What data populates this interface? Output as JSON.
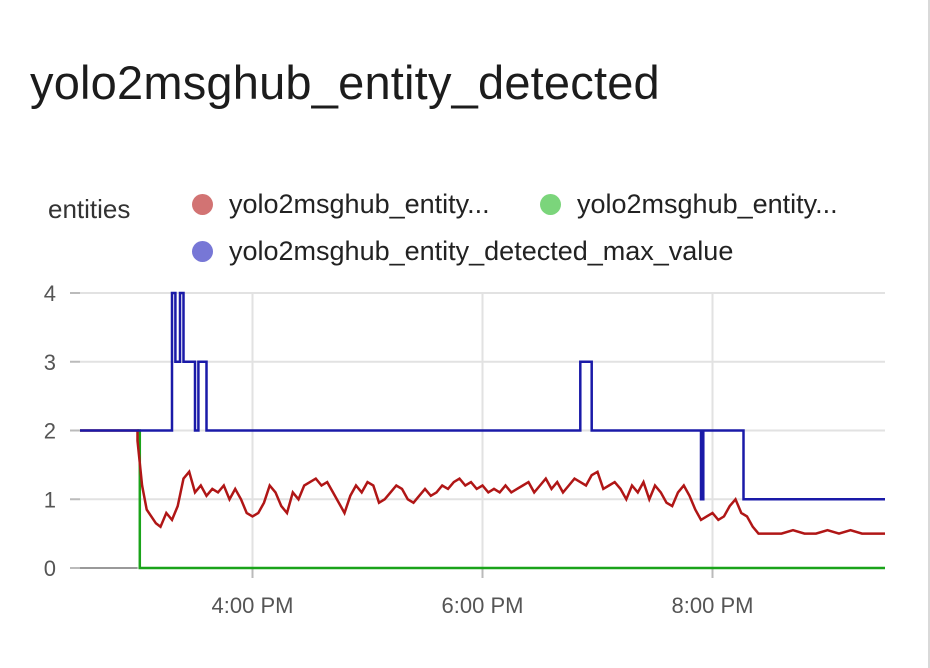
{
  "chart_data": {
    "type": "line",
    "title": "yolo2msghub_entity_detected",
    "ylabel": "entities",
    "ylim": [
      0,
      4
    ],
    "yticks": [
      0,
      1,
      2,
      3,
      4
    ],
    "xlim": [
      14.5,
      21.5
    ],
    "xticks": [
      {
        "value": 16,
        "label": "4:00 PM"
      },
      {
        "value": 18,
        "label": "6:00 PM"
      },
      {
        "value": 20,
        "label": "8:00 PM"
      }
    ],
    "grid": true,
    "legend_position": "top",
    "series": [
      {
        "name": "yolo2msghub_entity...",
        "color": "#b01616",
        "legend_color": "#d27373",
        "step": false,
        "x": [
          14.5,
          15.0,
          15.0,
          15.04,
          15.08,
          15.12,
          15.16,
          15.2,
          15.25,
          15.3,
          15.35,
          15.4,
          15.45,
          15.5,
          15.55,
          15.6,
          15.65,
          15.7,
          15.75,
          15.8,
          15.85,
          15.9,
          15.95,
          16.0,
          16.05,
          16.1,
          16.15,
          16.2,
          16.25,
          16.3,
          16.35,
          16.4,
          16.45,
          16.5,
          16.55,
          16.6,
          16.65,
          16.7,
          16.75,
          16.8,
          16.85,
          16.9,
          16.95,
          17.0,
          17.05,
          17.1,
          17.15,
          17.2,
          17.25,
          17.3,
          17.35,
          17.4,
          17.45,
          17.5,
          17.55,
          17.6,
          17.65,
          17.7,
          17.75,
          17.8,
          17.85,
          17.9,
          17.95,
          18.0,
          18.05,
          18.1,
          18.15,
          18.2,
          18.25,
          18.3,
          18.35,
          18.4,
          18.45,
          18.5,
          18.55,
          18.6,
          18.65,
          18.7,
          18.75,
          18.8,
          18.85,
          18.9,
          18.95,
          19.0,
          19.05,
          19.1,
          19.15,
          19.2,
          19.25,
          19.3,
          19.35,
          19.4,
          19.45,
          19.5,
          19.55,
          19.6,
          19.65,
          19.7,
          19.75,
          19.8,
          19.85,
          19.9,
          19.95,
          20.0,
          20.05,
          20.1,
          20.15,
          20.2,
          20.25,
          20.3,
          20.35,
          20.4,
          20.45,
          20.5,
          20.6,
          20.7,
          20.8,
          20.9,
          21.0,
          21.1,
          21.2,
          21.3,
          21.4,
          21.5
        ],
        "y": [
          2,
          2,
          1.85,
          1.2,
          0.85,
          0.75,
          0.65,
          0.6,
          0.8,
          0.7,
          0.9,
          1.3,
          1.4,
          1.1,
          1.2,
          1.05,
          1.15,
          1.1,
          1.2,
          1.0,
          1.15,
          1.0,
          0.8,
          0.75,
          0.8,
          0.95,
          1.2,
          1.1,
          0.9,
          0.8,
          1.1,
          1.0,
          1.2,
          1.25,
          1.3,
          1.2,
          1.25,
          1.1,
          0.95,
          0.8,
          1.05,
          1.2,
          1.1,
          1.25,
          1.2,
          0.95,
          1.0,
          1.1,
          1.2,
          1.15,
          1.0,
          0.95,
          1.05,
          1.15,
          1.05,
          1.1,
          1.2,
          1.15,
          1.25,
          1.3,
          1.2,
          1.25,
          1.15,
          1.2,
          1.1,
          1.15,
          1.1,
          1.2,
          1.1,
          1.15,
          1.2,
          1.25,
          1.1,
          1.2,
          1.3,
          1.15,
          1.25,
          1.1,
          1.2,
          1.3,
          1.25,
          1.2,
          1.35,
          1.4,
          1.15,
          1.2,
          1.25,
          1.15,
          1.0,
          1.2,
          1.1,
          1.25,
          1.0,
          1.2,
          1.1,
          0.95,
          0.9,
          1.1,
          1.2,
          1.05,
          0.85,
          0.7,
          0.75,
          0.8,
          0.7,
          0.75,
          0.9,
          1.0,
          0.8,
          0.75,
          0.6,
          0.5,
          0.5,
          0.5,
          0.5,
          0.55,
          0.5,
          0.5,
          0.55,
          0.5,
          0.55,
          0.5,
          0.5,
          0.5
        ]
      },
      {
        "name": "yolo2msghub_entity...",
        "color": "#1aa31a",
        "legend_color": "#7bd57b",
        "step": true,
        "x": [
          15.0,
          15.02,
          21.5
        ],
        "y": [
          2,
          0,
          0
        ]
      },
      {
        "name": "yolo2msghub_entity_detected_max_value",
        "color": "#1a1aa8",
        "legend_color": "#7777d6",
        "step": true,
        "x": [
          14.5,
          15.0,
          15.3,
          15.33,
          15.37,
          15.4,
          15.5,
          15.53,
          15.6,
          15.67,
          18.85,
          18.95,
          19.9,
          19.92,
          20.27,
          21.5
        ],
        "y": [
          2,
          2,
          4,
          3,
          4,
          3,
          2,
          3,
          2,
          2,
          3,
          2,
          1,
          2,
          1,
          1
        ]
      }
    ],
    "baseline": {
      "color": "#999999"
    }
  }
}
